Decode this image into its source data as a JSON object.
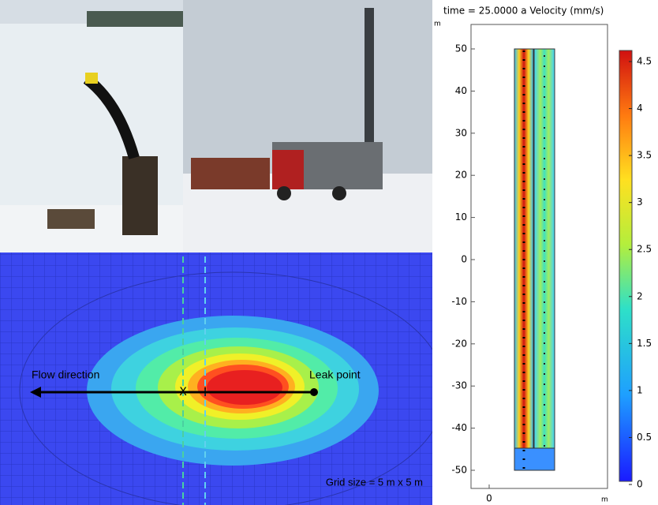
{
  "contour": {
    "flow_label": "Flow direction",
    "leak_label": "Leak point",
    "grid_label": "Grid size = 5 m x 5 m",
    "marker_x": "X",
    "marker_plus": "+"
  },
  "velocity_plot": {
    "title": "time = 25.0000 a Velocity (mm/s)",
    "y_unit": "m",
    "x_unit": "m",
    "yticks": [
      "50",
      "40",
      "30",
      "20",
      "10",
      "0",
      "-10",
      "-20",
      "-30",
      "-40",
      "-50"
    ],
    "xticks": [
      "0"
    ],
    "colorbar_ticks": [
      "4.5",
      "4",
      "3.5",
      "3",
      "2.5",
      "2",
      "1.5",
      "1",
      "0.5",
      "0"
    ]
  }
}
